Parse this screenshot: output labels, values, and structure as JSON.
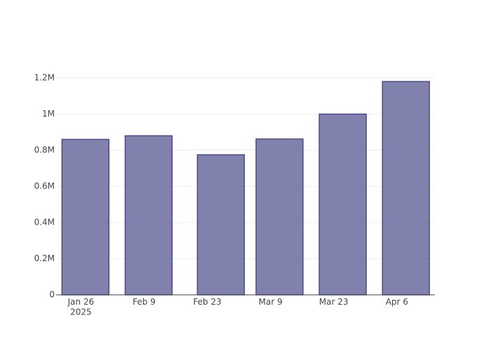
{
  "chart_data": {
    "type": "bar",
    "x": [
      "2025-01-27",
      "2025-02-10",
      "2025-02-26",
      "2025-03-11",
      "2025-03-25",
      "2025-04-08"
    ],
    "values": [
      860000,
      880000,
      775000,
      862000,
      1000000,
      1180000
    ],
    "color": "#4b4b8c",
    "xlim": [
      "2025-01-20T12:00",
      "2025-04-14T10:00"
    ],
    "xticks": [
      {
        "value": "2025-01-26",
        "label": "Jan 26\n2025"
      },
      {
        "value": "2025-02-09",
        "label": "Feb 9"
      },
      {
        "value": "2025-02-23",
        "label": "Feb 23"
      },
      {
        "value": "2025-03-09",
        "label": "Mar 9"
      },
      {
        "value": "2025-03-23",
        "label": "Mar 23"
      },
      {
        "value": "2025-04-06",
        "label": "Apr 6"
      }
    ],
    "ylim": [
      0,
      1240000
    ],
    "yticks": [
      0,
      {
        "value": 200000,
        "label": "0.2M"
      },
      {
        "value": 400000,
        "label": "0.4M"
      },
      {
        "value": 600000,
        "label": "0.6M"
      },
      {
        "value": 800000,
        "label": "0.8M"
      },
      {
        "value": 1000000,
        "label": "1M"
      },
      {
        "value": 1200000,
        "label": "1.2M"
      }
    ],
    "grid": true
  }
}
